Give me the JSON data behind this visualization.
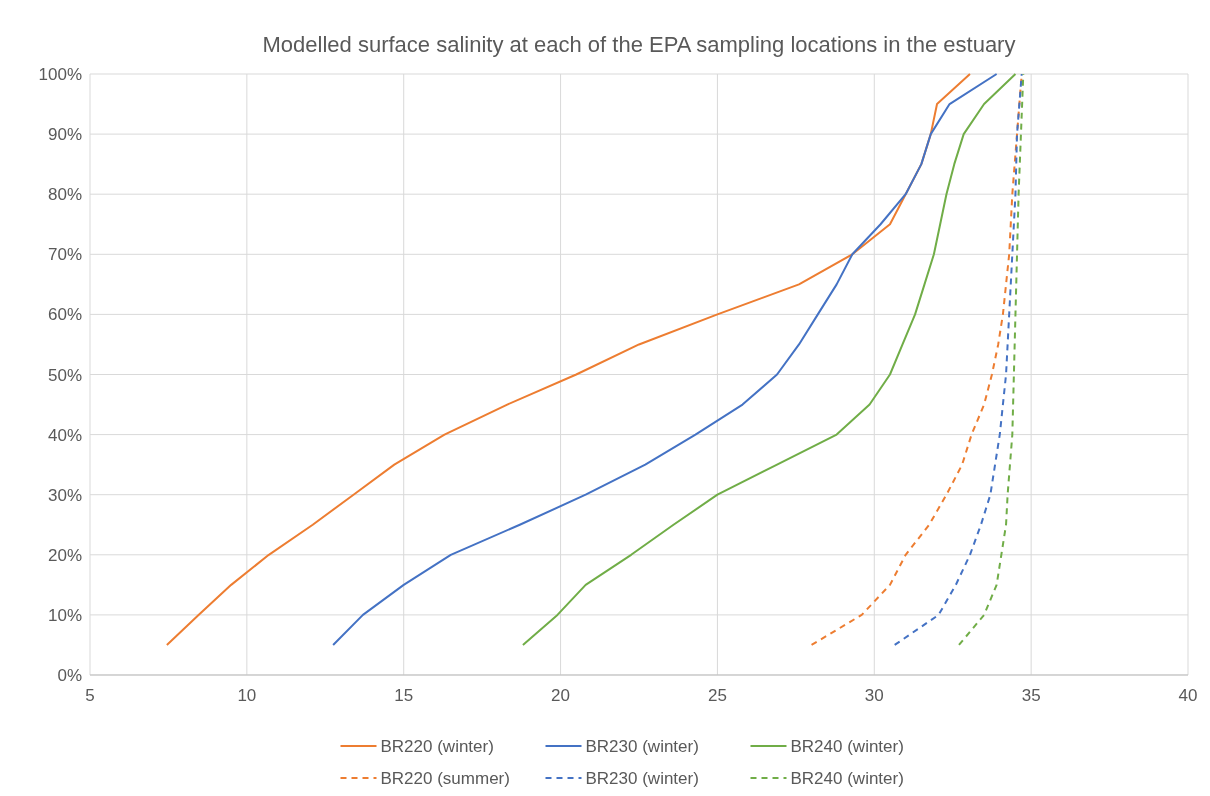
{
  "chart_data": {
    "type": "line",
    "title": "Modelled surface salinity at each of the EPA sampling locations in the estuary",
    "xlim": [
      5,
      40
    ],
    "xticks": [
      5,
      10,
      15,
      20,
      25,
      30,
      35,
      40
    ],
    "ylim": [
      0,
      100
    ],
    "yticks": [
      {
        "value": 0,
        "label": "0%"
      },
      {
        "value": 10,
        "label": "10%"
      },
      {
        "value": 20,
        "label": "20%"
      },
      {
        "value": 30,
        "label": "30%"
      },
      {
        "value": 40,
        "label": "40%"
      },
      {
        "value": 50,
        "label": "50%"
      },
      {
        "value": 60,
        "label": "60%"
      },
      {
        "value": 70,
        "label": "70%"
      },
      {
        "value": 80,
        "label": "80%"
      },
      {
        "value": 90,
        "label": "90%"
      },
      {
        "value": 100,
        "label": "100%"
      }
    ],
    "grid": true,
    "legend": "bottom",
    "marker": "none",
    "series": [
      {
        "name": "BR220 (winter)",
        "color": "#ed7d31",
        "line_style": "solid",
        "x": [
          7.45,
          8.46,
          9.5,
          10.7,
          12.1,
          13.4,
          14.7,
          16.3,
          18.3,
          20.5,
          22.5,
          25.0,
          27.6,
          29.3,
          30.5,
          31.0,
          31.5,
          31.8,
          32.0,
          33.05
        ],
        "values": [
          5,
          10,
          15,
          20,
          25,
          30,
          35,
          40,
          45,
          50,
          55,
          60,
          65,
          70,
          75,
          80,
          85,
          90,
          95,
          100
        ]
      },
      {
        "name": "BR230 (winter)",
        "color": "#4472c4",
        "line_style": "solid",
        "x": [
          12.75,
          13.7,
          15.0,
          16.5,
          18.7,
          20.8,
          22.7,
          24.3,
          25.8,
          26.9,
          27.6,
          28.2,
          28.8,
          29.3,
          30.2,
          31.0,
          31.5,
          31.8,
          32.4,
          33.9
        ],
        "values": [
          5,
          10,
          15,
          20,
          25,
          30,
          35,
          40,
          45,
          50,
          55,
          60,
          65,
          70,
          75,
          80,
          85,
          90,
          95,
          100
        ]
      },
      {
        "name": "BR240 (winter)",
        "color": "#70ad47",
        "line_style": "solid",
        "x": [
          18.8,
          19.9,
          20.8,
          22.25,
          23.6,
          25.0,
          26.9,
          28.8,
          29.85,
          30.5,
          30.9,
          31.3,
          31.6,
          31.9,
          32.1,
          32.3,
          32.55,
          32.85,
          33.5,
          34.5
        ],
        "values": [
          5,
          10,
          15,
          20,
          25,
          30,
          35,
          40,
          45,
          50,
          55,
          60,
          65,
          70,
          75,
          80,
          85,
          90,
          95,
          100
        ]
      },
      {
        "name": "BR220 (summer)",
        "color": "#ed7d31",
        "line_style": "dashed",
        "x": [
          28.0,
          29.6,
          30.5,
          31.0,
          31.75,
          32.3,
          32.8,
          33.1,
          33.5,
          33.75,
          33.95,
          34.1,
          34.3,
          34.4,
          34.55,
          34.7
        ],
        "values": [
          5,
          10,
          15,
          20,
          25,
          30,
          35,
          40,
          45,
          50,
          55,
          60,
          70,
          80,
          90,
          100
        ]
      },
      {
        "name": "BR230 (winter)",
        "color": "#4472c4",
        "line_style": "dashed",
        "x": [
          30.65,
          32.05,
          32.6,
          33.05,
          33.4,
          33.7,
          33.85,
          34.0,
          34.2,
          34.3,
          34.4,
          34.5,
          34.55,
          34.7
        ],
        "values": [
          5,
          10,
          15,
          20,
          25,
          30,
          35,
          40,
          50,
          60,
          70,
          80,
          90,
          100
        ]
      },
      {
        "name": "BR240 (winter)",
        "color": "#70ad47",
        "line_style": "dashed",
        "x": [
          32.7,
          33.5,
          33.9,
          34.05,
          34.2,
          34.25,
          34.4,
          34.45,
          34.5,
          34.55,
          34.6,
          34.75
        ],
        "values": [
          5,
          10,
          15,
          20,
          25,
          30,
          40,
          50,
          60,
          70,
          80,
          100
        ]
      }
    ]
  }
}
